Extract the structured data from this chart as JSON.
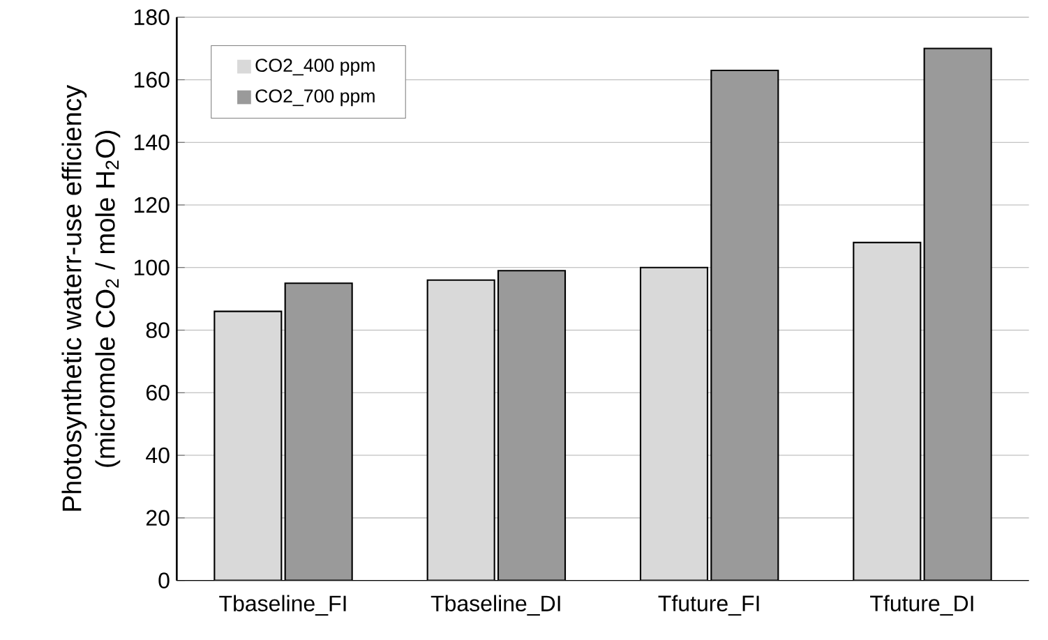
{
  "chart_data": {
    "type": "bar",
    "ylabel": "Photosynthetic waterr-use efficiency\n(micromole CO$_{2}$ / mole H$_{2}$O)",
    "categories": [
      "Tbaseline_FI",
      "Tbaseline_DI",
      "Tfuture_FI",
      "Tfuture_DI"
    ],
    "series": [
      {
        "name": "CO2_400 ppm",
        "color": "#d9d9d9",
        "values": [
          86,
          96,
          100,
          108
        ]
      },
      {
        "name": "CO2_700 ppm",
        "color": "#9a9a9a",
        "values": [
          95,
          99,
          163,
          170
        ]
      }
    ],
    "ylim": [
      0,
      180
    ],
    "yticks": [
      0,
      20,
      40,
      60,
      80,
      100,
      120,
      140,
      160,
      180
    ],
    "grid": "y",
    "legend": "top left"
  }
}
